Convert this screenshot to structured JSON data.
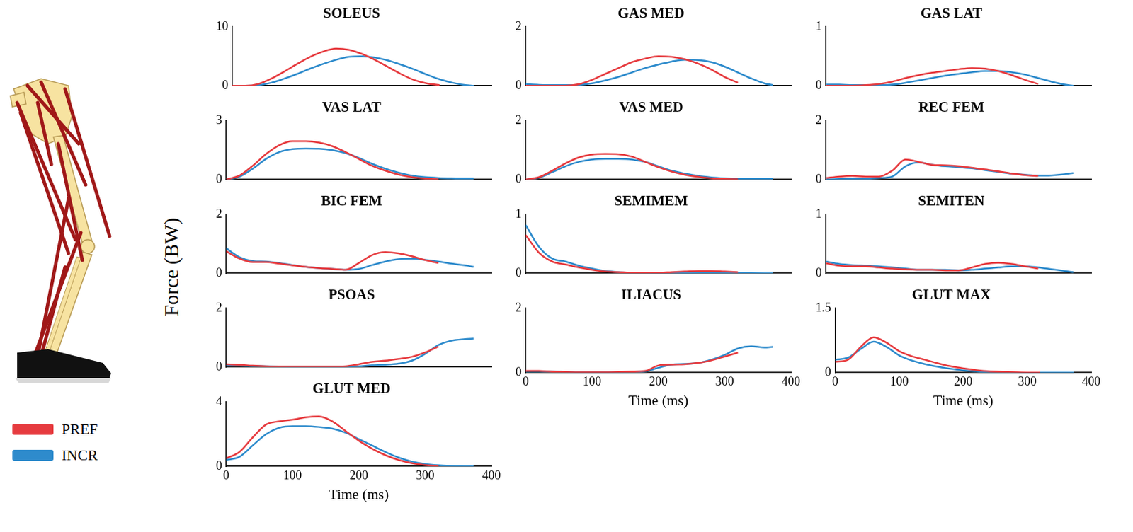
{
  "ylabel": "Force (BW)",
  "chart_data": [
    {
      "type": "line",
      "title": "SOLEUS",
      "x": [
        0,
        20,
        40,
        60,
        80,
        100,
        120,
        140,
        160,
        180,
        200,
        220,
        240,
        260,
        280,
        300,
        320,
        340,
        360,
        373
      ],
      "xlim": [
        0,
        400
      ],
      "ylim": [
        0,
        10
      ],
      "yticks": [
        0,
        10
      ],
      "grid": false,
      "tick_labels": "y",
      "series": [
        {
          "name": "PREF",
          "color": "#e63b3f",
          "values": [
            0,
            0,
            0.3,
            1.2,
            2.4,
            3.7,
            4.9,
            5.8,
            6.3,
            6.1,
            5.4,
            4.4,
            3.2,
            2.0,
            1.0,
            0.4,
            0.1,
            null,
            null,
            null
          ]
        },
        {
          "name": "INCR",
          "color": "#2e8bcc",
          "values": [
            0,
            0,
            0.1,
            0.5,
            1.2,
            2.0,
            2.9,
            3.7,
            4.4,
            4.9,
            5.0,
            4.8,
            4.3,
            3.6,
            2.8,
            1.9,
            1.1,
            0.5,
            0.1,
            0
          ]
        }
      ]
    },
    {
      "type": "line",
      "title": "GAS MED",
      "x": [
        0,
        20,
        40,
        60,
        80,
        100,
        120,
        140,
        160,
        180,
        200,
        220,
        240,
        260,
        280,
        300,
        320,
        340,
        360,
        373
      ],
      "xlim": [
        0,
        400
      ],
      "ylim": [
        0,
        2
      ],
      "yticks": [
        0,
        2
      ],
      "grid": false,
      "tick_labels": "y",
      "series": [
        {
          "name": "PREF",
          "color": "#e63b3f",
          "values": [
            0,
            0,
            0,
            0,
            0.05,
            0.2,
            0.4,
            0.6,
            0.8,
            0.92,
            1.0,
            0.98,
            0.9,
            0.75,
            0.55,
            0.3,
            0.1,
            null,
            null,
            null
          ]
        },
        {
          "name": "INCR",
          "color": "#2e8bcc",
          "values": [
            0.05,
            0.03,
            0.02,
            0.02,
            0.03,
            0.08,
            0.18,
            0.3,
            0.45,
            0.6,
            0.72,
            0.82,
            0.88,
            0.87,
            0.8,
            0.65,
            0.45,
            0.25,
            0.08,
            0.02
          ]
        }
      ]
    },
    {
      "type": "line",
      "title": "GAS LAT",
      "x": [
        0,
        20,
        40,
        60,
        80,
        100,
        120,
        140,
        160,
        180,
        200,
        220,
        240,
        260,
        280,
        300,
        320,
        340,
        360,
        373
      ],
      "xlim": [
        0,
        400
      ],
      "ylim": [
        0,
        1
      ],
      "yticks": [
        0,
        1
      ],
      "grid": false,
      "tick_labels": "y",
      "series": [
        {
          "name": "PREF",
          "color": "#e63b3f",
          "values": [
            0,
            0,
            0,
            0.01,
            0.03,
            0.07,
            0.13,
            0.18,
            0.22,
            0.25,
            0.28,
            0.3,
            0.29,
            0.25,
            0.18,
            0.1,
            0.03,
            null,
            null,
            null
          ]
        },
        {
          "name": "INCR",
          "color": "#2e8bcc",
          "values": [
            0.02,
            0.02,
            0.01,
            0.01,
            0.01,
            0.02,
            0.05,
            0.09,
            0.13,
            0.17,
            0.2,
            0.23,
            0.25,
            0.25,
            0.23,
            0.19,
            0.13,
            0.07,
            0.02,
            0
          ]
        }
      ]
    },
    {
      "type": "line",
      "title": "VAS LAT",
      "x": [
        0,
        20,
        40,
        60,
        80,
        100,
        120,
        140,
        160,
        180,
        200,
        220,
        240,
        260,
        280,
        300,
        320,
        340,
        360,
        373
      ],
      "xlim": [
        0,
        400
      ],
      "ylim": [
        0,
        3
      ],
      "yticks": [
        0,
        3
      ],
      "grid": false,
      "tick_labels": "y",
      "series": [
        {
          "name": "PREF",
          "color": "#e63b3f",
          "values": [
            0,
            0.2,
            0.7,
            1.3,
            1.75,
            1.95,
            1.95,
            1.88,
            1.7,
            1.4,
            1.05,
            0.7,
            0.45,
            0.25,
            0.12,
            0.05,
            0.02,
            null,
            null,
            null
          ]
        },
        {
          "name": "INCR",
          "color": "#2e8bcc",
          "values": [
            0,
            0.15,
            0.55,
            1.05,
            1.4,
            1.55,
            1.58,
            1.57,
            1.5,
            1.35,
            1.1,
            0.8,
            0.55,
            0.35,
            0.2,
            0.12,
            0.08,
            0.06,
            0.05,
            0.05
          ]
        }
      ]
    },
    {
      "type": "line",
      "title": "VAS MED",
      "x": [
        0,
        20,
        40,
        60,
        80,
        100,
        120,
        140,
        160,
        180,
        200,
        220,
        240,
        260,
        280,
        300,
        320,
        340,
        360,
        373
      ],
      "xlim": [
        0,
        400
      ],
      "ylim": [
        0,
        2
      ],
      "yticks": [
        0,
        2
      ],
      "grid": false,
      "tick_labels": "y",
      "series": [
        {
          "name": "PREF",
          "color": "#e63b3f",
          "values": [
            0,
            0.08,
            0.3,
            0.55,
            0.75,
            0.85,
            0.87,
            0.86,
            0.78,
            0.6,
            0.42,
            0.27,
            0.16,
            0.09,
            0.04,
            0.02,
            0.01,
            null,
            null,
            null
          ]
        },
        {
          "name": "INCR",
          "color": "#2e8bcc",
          "values": [
            0,
            0.06,
            0.25,
            0.45,
            0.6,
            0.68,
            0.7,
            0.7,
            0.68,
            0.6,
            0.45,
            0.3,
            0.2,
            0.12,
            0.07,
            0.04,
            0.02,
            0.02,
            0.02,
            0.02
          ]
        }
      ]
    },
    {
      "type": "line",
      "title": "REC FEM",
      "x": [
        0,
        20,
        40,
        60,
        80,
        100,
        120,
        140,
        160,
        180,
        200,
        220,
        240,
        260,
        280,
        300,
        320,
        340,
        360,
        373
      ],
      "xlim": [
        0,
        400
      ],
      "ylim": [
        0,
        2
      ],
      "yticks": [
        0,
        2
      ],
      "grid": false,
      "tick_labels": "y",
      "series": [
        {
          "name": "PREF",
          "color": "#e63b3f",
          "values": [
            0.05,
            0.1,
            0.12,
            0.1,
            0.1,
            0.3,
            0.68,
            0.6,
            0.5,
            0.48,
            0.45,
            0.4,
            0.34,
            0.28,
            0.2,
            0.15,
            0.12,
            null,
            null,
            null
          ]
        },
        {
          "name": "INCR",
          "color": "#2e8bcc",
          "values": [
            0,
            0.02,
            0.03,
            0.03,
            0.05,
            0.1,
            0.45,
            0.58,
            0.5,
            0.45,
            0.42,
            0.38,
            0.32,
            0.26,
            0.2,
            0.16,
            0.13,
            0.14,
            0.18,
            0.22
          ]
        }
      ]
    },
    {
      "type": "line",
      "title": "BIC FEM",
      "x": [
        0,
        20,
        40,
        60,
        80,
        100,
        120,
        140,
        160,
        180,
        200,
        220,
        240,
        260,
        280,
        300,
        320,
        340,
        360,
        373
      ],
      "xlim": [
        0,
        400
      ],
      "ylim": [
        0,
        2
      ],
      "yticks": [
        0,
        2
      ],
      "grid": false,
      "tick_labels": "y",
      "series": [
        {
          "name": "PREF",
          "color": "#e63b3f",
          "values": [
            0.75,
            0.5,
            0.38,
            0.38,
            0.33,
            0.27,
            0.22,
            0.18,
            0.15,
            0.12,
            0.35,
            0.62,
            0.72,
            0.68,
            0.58,
            0.45,
            0.35,
            null,
            null,
            null
          ]
        },
        {
          "name": "INCR",
          "color": "#2e8bcc",
          "values": [
            0.85,
            0.55,
            0.42,
            0.4,
            0.35,
            0.28,
            0.22,
            0.18,
            0.15,
            0.12,
            0.15,
            0.28,
            0.4,
            0.48,
            0.5,
            0.46,
            0.4,
            0.33,
            0.27,
            0.22
          ]
        }
      ]
    },
    {
      "type": "line",
      "title": "SEMIMEM",
      "x": [
        0,
        20,
        40,
        60,
        80,
        100,
        120,
        140,
        160,
        180,
        200,
        220,
        240,
        260,
        280,
        300,
        320,
        340,
        360,
        373
      ],
      "xlim": [
        0,
        400
      ],
      "ylim": [
        0,
        1
      ],
      "yticks": [
        0,
        1
      ],
      "grid": false,
      "tick_labels": "y",
      "series": [
        {
          "name": "PREF",
          "color": "#e63b3f",
          "values": [
            0.65,
            0.35,
            0.2,
            0.15,
            0.1,
            0.06,
            0.03,
            0.02,
            0.01,
            0.01,
            0.01,
            0.02,
            0.03,
            0.04,
            0.04,
            0.03,
            0.02,
            null,
            null,
            null
          ]
        },
        {
          "name": "INCR",
          "color": "#2e8bcc",
          "values": [
            0.82,
            0.45,
            0.25,
            0.2,
            0.13,
            0.08,
            0.04,
            0.02,
            0.01,
            0.01,
            0,
            0,
            0,
            0.01,
            0.01,
            0.01,
            0.01,
            0.01,
            0,
            0
          ]
        }
      ]
    },
    {
      "type": "line",
      "title": "SEMITEN",
      "x": [
        0,
        20,
        40,
        60,
        80,
        100,
        120,
        140,
        160,
        180,
        200,
        220,
        240,
        260,
        280,
        300,
        320,
        340,
        360,
        373
      ],
      "xlim": [
        0,
        400
      ],
      "ylim": [
        0,
        1
      ],
      "yticks": [
        0,
        1
      ],
      "grid": false,
      "tick_labels": "y",
      "series": [
        {
          "name": "PREF",
          "color": "#e63b3f",
          "values": [
            0.17,
            0.13,
            0.12,
            0.12,
            0.1,
            0.08,
            0.07,
            0.06,
            0.06,
            0.05,
            0.05,
            0.1,
            0.16,
            0.18,
            0.16,
            0.12,
            0.08,
            null,
            null,
            null
          ]
        },
        {
          "name": "INCR",
          "color": "#2e8bcc",
          "values": [
            0.2,
            0.16,
            0.14,
            0.13,
            0.12,
            0.1,
            0.08,
            0.06,
            0.06,
            0.06,
            0.05,
            0.06,
            0.08,
            0.1,
            0.12,
            0.12,
            0.1,
            0.07,
            0.04,
            0.02
          ]
        }
      ]
    },
    {
      "type": "line",
      "title": "PSOAS",
      "x": [
        0,
        20,
        40,
        60,
        80,
        100,
        120,
        140,
        160,
        180,
        200,
        220,
        240,
        260,
        280,
        300,
        320,
        340,
        360,
        373
      ],
      "xlim": [
        0,
        400
      ],
      "ylim": [
        0,
        2
      ],
      "yticks": [
        0,
        2
      ],
      "grid": false,
      "tick_labels": "y",
      "series": [
        {
          "name": "PREF",
          "color": "#e63b3f",
          "values": [
            0.1,
            0.08,
            0.05,
            0.03,
            0.02,
            0.02,
            0.02,
            0.02,
            0.02,
            0.03,
            0.1,
            0.18,
            0.22,
            0.28,
            0.35,
            0.5,
            0.7,
            null,
            null,
            null
          ]
        },
        {
          "name": "INCR",
          "color": "#2e8bcc",
          "values": [
            0.05,
            0.05,
            0.04,
            0.03,
            0.02,
            0.01,
            0.01,
            0.01,
            0.01,
            0.01,
            0.03,
            0.06,
            0.08,
            0.12,
            0.22,
            0.45,
            0.75,
            0.9,
            0.95,
            0.97
          ]
        }
      ]
    },
    {
      "type": "line",
      "title": "ILIACUS",
      "x": [
        0,
        20,
        40,
        60,
        80,
        100,
        120,
        140,
        160,
        180,
        200,
        220,
        240,
        260,
        280,
        300,
        320,
        340,
        360,
        373
      ],
      "xlim": [
        0,
        400
      ],
      "xticks": [
        0,
        100,
        200,
        300,
        400
      ],
      "xlabel": "Time (ms)",
      "ylim": [
        0,
        2
      ],
      "yticks": [
        0,
        2
      ],
      "grid": false,
      "tick_labels": true,
      "series": [
        {
          "name": "PREF",
          "color": "#e63b3f",
          "values": [
            0.05,
            0.05,
            0.03,
            0.02,
            0.01,
            0.01,
            0.01,
            0.02,
            0.03,
            0.05,
            0.22,
            0.25,
            0.26,
            0.3,
            0.38,
            0.5,
            0.62,
            null,
            null,
            null
          ]
        },
        {
          "name": "INCR",
          "color": "#2e8bcc",
          "values": [
            0.04,
            0.04,
            0.03,
            0.02,
            0.01,
            0.01,
            0.01,
            0.01,
            0.02,
            0.04,
            0.15,
            0.25,
            0.27,
            0.3,
            0.4,
            0.55,
            0.75,
            0.82,
            0.78,
            0.8
          ]
        }
      ]
    },
    {
      "type": "line",
      "title": "GLUT MAX",
      "x": [
        0,
        20,
        40,
        60,
        80,
        100,
        120,
        140,
        160,
        180,
        200,
        220,
        240,
        260,
        280,
        300,
        320,
        340,
        360,
        373
      ],
      "xlim": [
        0,
        400
      ],
      "xticks": [
        0,
        100,
        200,
        300,
        400
      ],
      "xlabel": "Time (ms)",
      "ylim": [
        0,
        1.5
      ],
      "yticks": [
        0,
        1.5
      ],
      "grid": false,
      "tick_labels": true,
      "series": [
        {
          "name": "PREF",
          "color": "#e63b3f",
          "values": [
            0.25,
            0.3,
            0.6,
            0.82,
            0.7,
            0.5,
            0.38,
            0.3,
            0.22,
            0.15,
            0.1,
            0.06,
            0.03,
            0.02,
            0.01,
            0,
            0,
            null,
            null,
            null
          ]
        },
        {
          "name": "INCR",
          "color": "#2e8bcc",
          "values": [
            0.3,
            0.35,
            0.55,
            0.72,
            0.6,
            0.4,
            0.28,
            0.2,
            0.14,
            0.09,
            0.05,
            0.03,
            0.01,
            0,
            0,
            0,
            0,
            0,
            0,
            0
          ]
        }
      ]
    },
    {
      "type": "line",
      "title": "GLUT MED",
      "x": [
        0,
        20,
        40,
        60,
        80,
        100,
        120,
        140,
        160,
        180,
        200,
        220,
        240,
        260,
        280,
        300,
        320,
        340,
        360,
        373
      ],
      "xlim": [
        0,
        400
      ],
      "xticks": [
        0,
        100,
        200,
        300,
        400
      ],
      "xlabel": "Time (ms)",
      "ylim": [
        0,
        4
      ],
      "yticks": [
        0,
        4
      ],
      "grid": false,
      "tick_labels": true,
      "series": [
        {
          "name": "PREF",
          "color": "#e63b3f",
          "values": [
            0.5,
            0.9,
            1.8,
            2.6,
            2.8,
            2.9,
            3.05,
            3.1,
            2.8,
            2.2,
            1.6,
            1.1,
            0.7,
            0.4,
            0.2,
            0.08,
            0.02,
            null,
            null,
            null
          ]
        },
        {
          "name": "INCR",
          "color": "#2e8bcc",
          "values": [
            0.4,
            0.6,
            1.3,
            2.0,
            2.4,
            2.5,
            2.5,
            2.45,
            2.35,
            2.1,
            1.7,
            1.3,
            0.9,
            0.55,
            0.3,
            0.15,
            0.07,
            0.03,
            0.01,
            0
          ]
        }
      ]
    }
  ]
}
